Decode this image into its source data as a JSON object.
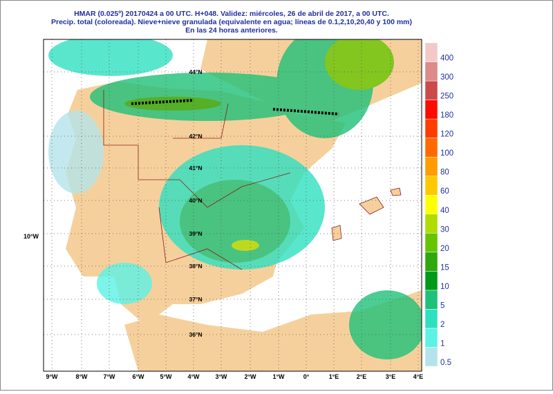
{
  "title": {
    "lines": [
      "HMAR (0.025º) 20170424 a 00 UTC.  H+048. Validez: miércoles, 26 de abril de 2017,  a  00 UTC.",
      "Precip. total (coloreada). Nieve+nieve granulada (equivalente en agua; líneas de 0.1,2,10,20,40 y 100 mm)",
      "En las 24 horas anteriores."
    ]
  },
  "map": {
    "lon_labels": [
      "9°W",
      "8°W",
      "7°W",
      "6°W",
      "5°W",
      "4°W",
      "3°W",
      "2°W",
      "1°W",
      "0°",
      "1°E",
      "2°E",
      "3°E",
      "4°E"
    ],
    "lat_labels": [
      "44°N",
      "42°N",
      "41°N",
      "40°N",
      "39°N",
      "38°N",
      "37°N",
      "36°N"
    ],
    "side_label": "10°W"
  },
  "legend": {
    "levels": [
      {
        "label": "0.5",
        "color": "#b4e4ea"
      },
      {
        "label": "1",
        "color": "#5cf2e6"
      },
      {
        "label": "2",
        "color": "#2fe0c0"
      },
      {
        "label": "5",
        "color": "#1fc078"
      },
      {
        "label": "10",
        "color": "#009a1a"
      },
      {
        "label": "15",
        "color": "#2ea80a"
      },
      {
        "label": "20",
        "color": "#66c400"
      },
      {
        "label": "30",
        "color": "#b0dc00"
      },
      {
        "label": "40",
        "color": "#ffff00"
      },
      {
        "label": "60",
        "color": "#ffc800"
      },
      {
        "label": "80",
        "color": "#ff9c00"
      },
      {
        "label": "100",
        "color": "#ff6a00"
      },
      {
        "label": "120",
        "color": "#ff3c00"
      },
      {
        "label": "180",
        "color": "#ff0a00"
      },
      {
        "label": "250",
        "color": "#cc4a4a"
      },
      {
        "label": "300",
        "color": "#dc8a8a"
      },
      {
        "label": "400",
        "color": "#f2c8c8"
      }
    ]
  }
}
